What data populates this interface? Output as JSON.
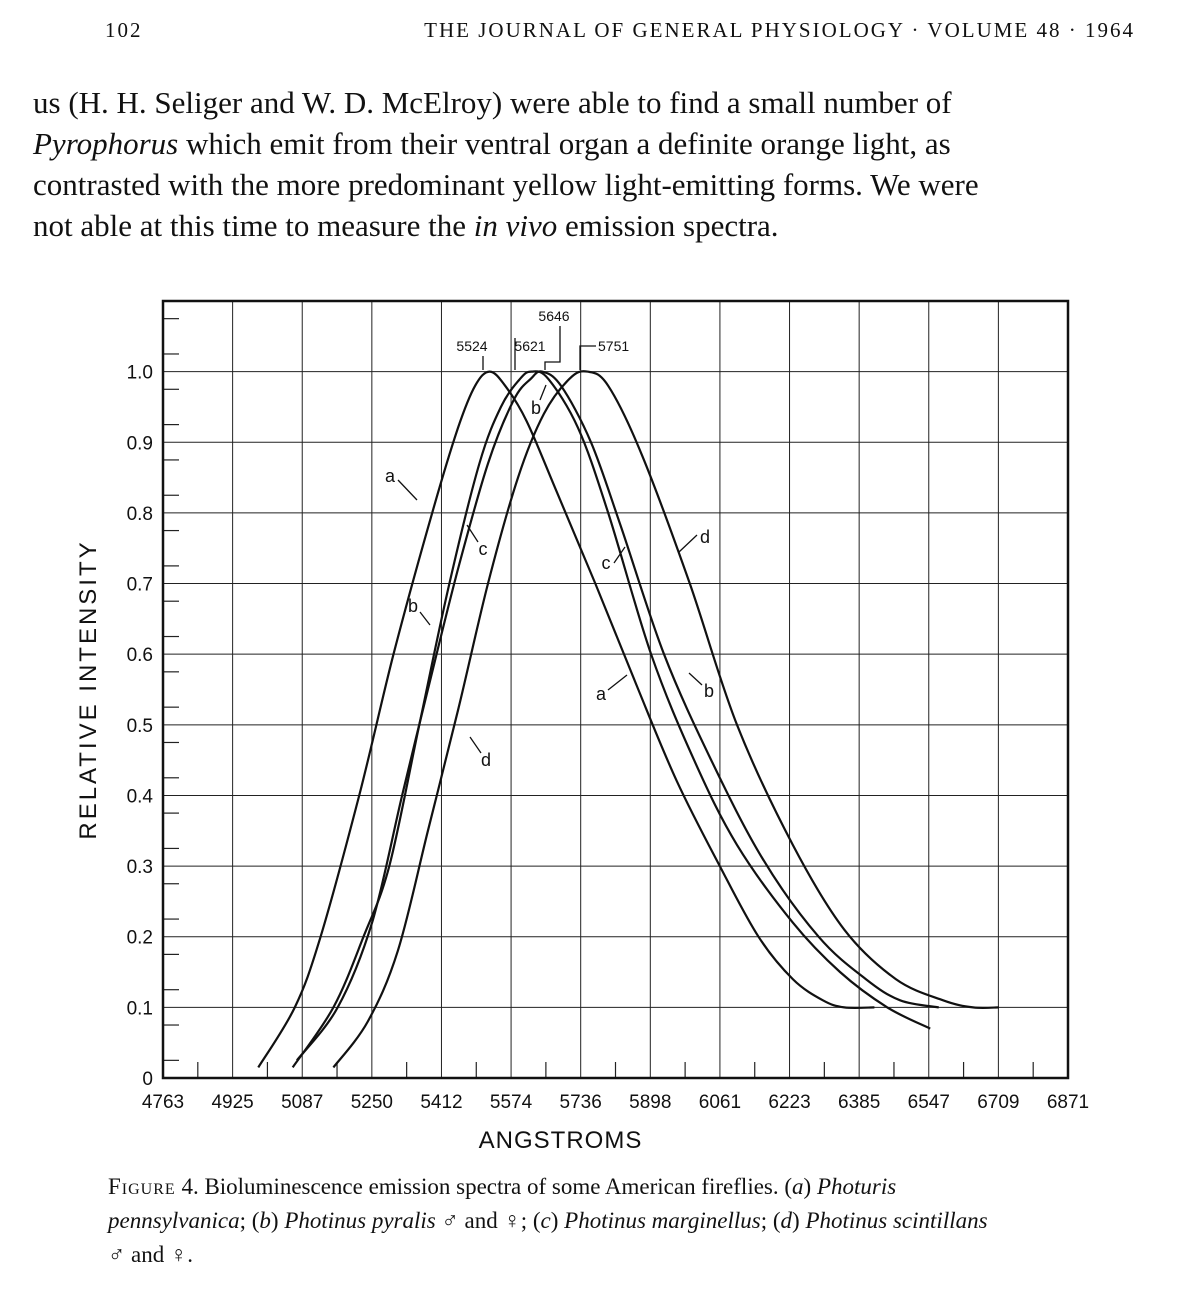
{
  "header": {
    "page_number": "102",
    "journal_title": "THE JOURNAL OF GENERAL PHYSIOLOGY · VOLUME 48 · 1964"
  },
  "body_lines": [
    [
      "us (H. H. Seliger and W. D. McElroy) were able to find a small number of"
    ],
    [
      {
        "t": "Pyrophorus",
        "i": true
      },
      " which emit from their ventral organ a definite orange light, as"
    ],
    [
      "contrasted with the more predominant yellow light-emitting forms. We were"
    ],
    [
      "not able at this time to measure the ",
      {
        "t": "in vivo",
        "i": true
      },
      " emission spectra."
    ]
  ],
  "caption_lines": [
    [
      {
        "t": "Figure",
        "sc": true
      },
      " 4.  Bioluminescence emission spectra of some American fireflies. (",
      {
        "t": "a",
        "i": true
      },
      ") ",
      {
        "t": "Photuris",
        "i": true
      }
    ],
    [
      {
        "t": "pennsylvanica",
        "i": true
      },
      "; (",
      {
        "t": "b",
        "i": true
      },
      ") ",
      {
        "t": "Photinus pyralis",
        "i": true
      },
      " ♂ and ♀; (",
      {
        "t": "c",
        "i": true
      },
      ") ",
      {
        "t": "Photinus marginellus",
        "i": true
      },
      "; (",
      {
        "t": "d",
        "i": true
      },
      ") ",
      {
        "t": "Photinus scintillans",
        "i": true
      }
    ],
    [
      "♂ and ♀."
    ]
  ],
  "chart_data": {
    "type": "line",
    "title": "",
    "xlabel": "ANGSTROMS",
    "ylabel": "RELATIVE INTENSITY",
    "xlim": [
      4763,
      6871
    ],
    "ylim": [
      0,
      1.1
    ],
    "x_ticks": [
      "4763",
      "4925",
      "5087",
      "5250",
      "5412",
      "5574",
      "5736",
      "5898",
      "6061",
      "6223",
      "6385",
      "6547",
      "6709",
      "6871"
    ],
    "y_ticks": [
      "0",
      "0.1",
      "0.2",
      "0.3",
      "0.4",
      "0.5",
      "0.6",
      "0.7",
      "0.8",
      "0.9",
      "1.0"
    ],
    "grid": true,
    "peak_labels": [
      "5524",
      "5621",
      "5646",
      "5751"
    ],
    "series": [
      {
        "name": "a",
        "labels": [
          "a",
          "a"
        ],
        "x": [
          4985,
          5070,
          5130,
          5220,
          5300,
          5390,
          5450,
          5490,
          5524,
          5560,
          5610,
          5680,
          5770,
          5870,
          5960,
          6060,
          6150,
          6230,
          6300,
          6350,
          6420
        ],
        "y": [
          0.015,
          0.1,
          0.2,
          0.4,
          0.6,
          0.8,
          0.92,
          0.98,
          1.0,
          0.98,
          0.93,
          0.83,
          0.7,
          0.55,
          0.42,
          0.3,
          0.2,
          0.14,
          0.11,
          0.1,
          0.1
        ]
      },
      {
        "name": "b",
        "labels": [
          "b",
          "b",
          "b"
        ],
        "x": [
          5065,
          5160,
          5230,
          5290,
          5360,
          5430,
          5500,
          5550,
          5595,
          5621,
          5660,
          5730,
          5800,
          5900,
          6000,
          6100,
          6230,
          6340,
          6450,
          6550
        ],
        "y": [
          0.015,
          0.1,
          0.2,
          0.3,
          0.5,
          0.7,
          0.87,
          0.95,
          0.99,
          1.0,
          0.99,
          0.92,
          0.8,
          0.6,
          0.45,
          0.33,
          0.22,
          0.15,
          0.1,
          0.07
        ]
      },
      {
        "name": "c",
        "labels": [
          "c",
          "c"
        ],
        "x": [
          5075,
          5170,
          5250,
          5320,
          5380,
          5450,
          5520,
          5580,
          5620,
          5646,
          5690,
          5760,
          5830,
          5930,
          6040,
          6160,
          6290,
          6400,
          6480,
          6570
        ],
        "y": [
          0.025,
          0.1,
          0.22,
          0.4,
          0.55,
          0.72,
          0.87,
          0.96,
          0.99,
          1.0,
          0.98,
          0.9,
          0.78,
          0.6,
          0.45,
          0.31,
          0.2,
          0.14,
          0.11,
          0.1
        ]
      },
      {
        "name": "d",
        "labels": [
          "d",
          "d"
        ],
        "x": [
          5160,
          5240,
          5310,
          5380,
          5450,
          5520,
          5590,
          5650,
          5710,
          5751,
          5800,
          5880,
          5990,
          6100,
          6230,
          6350,
          6470,
          6580,
          6650,
          6710
        ],
        "y": [
          0.015,
          0.08,
          0.18,
          0.35,
          0.52,
          0.7,
          0.85,
          0.94,
          0.99,
          1.0,
          0.98,
          0.88,
          0.7,
          0.5,
          0.33,
          0.21,
          0.14,
          0.11,
          0.1,
          0.1
        ]
      }
    ]
  }
}
